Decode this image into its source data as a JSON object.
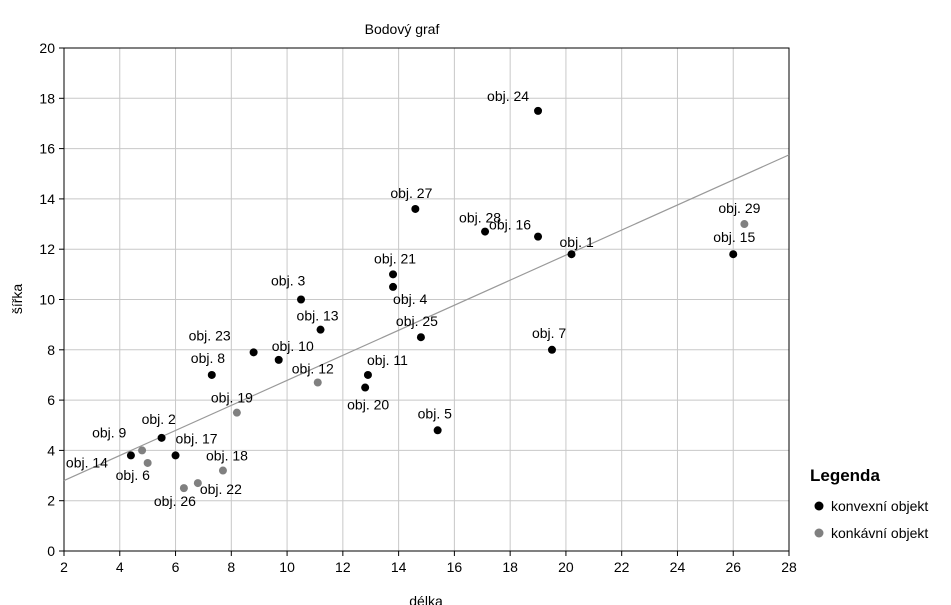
{
  "chart_data": {
    "type": "scatter",
    "title": "Bodový graf",
    "xlabel": "délka",
    "ylabel": "šířka",
    "xlim": [
      2,
      28
    ],
    "ylim": [
      0,
      20
    ],
    "xticks": [
      "2",
      "4",
      "6",
      "8",
      "10",
      "12",
      "14",
      "16",
      "18",
      "20",
      "22",
      "24",
      "26",
      "28"
    ],
    "yticks": [
      "0",
      "2",
      "4",
      "6",
      "8",
      "10",
      "12",
      "14",
      "16",
      "18",
      "20"
    ],
    "grid": true,
    "legend_position": "right",
    "legend": {
      "title": "Legenda",
      "entries": [
        {
          "name": "konvexní objekt",
          "color": "#000000"
        },
        {
          "name": "konkávní objekt",
          "color": "#808080"
        }
      ]
    },
    "trend_line": {
      "color": "#999999",
      "x": [
        2,
        28
      ],
      "y": [
        2.8,
        15.75
      ]
    },
    "series": [
      {
        "name": "konvexní objekt",
        "color": "#000000",
        "points": [
          {
            "x": 20.2,
            "y": 11.8,
            "label": "obj. 1"
          },
          {
            "x": 5.5,
            "y": 4.5,
            "label": "obj. 2"
          },
          {
            "x": 10.5,
            "y": 10.0,
            "label": "obj. 3"
          },
          {
            "x": 13.8,
            "y": 10.5,
            "label": "obj. 4"
          },
          {
            "x": 15.4,
            "y": 4.8,
            "label": "obj. 5"
          },
          {
            "x": 19.5,
            "y": 8.0,
            "label": "obj. 7"
          },
          {
            "x": 7.3,
            "y": 7.0,
            "label": "obj. 8"
          },
          {
            "x": 9.7,
            "y": 7.6,
            "label": "obj. 10"
          },
          {
            "x": 12.9,
            "y": 7.0,
            "label": "obj. 11"
          },
          {
            "x": 11.2,
            "y": 8.8,
            "label": "obj. 13"
          },
          {
            "x": 4.4,
            "y": 3.8,
            "label": "obj. 14"
          },
          {
            "x": 26.0,
            "y": 11.8,
            "label": "obj. 15"
          },
          {
            "x": 19.0,
            "y": 12.5,
            "label": "obj. 16"
          },
          {
            "x": 6.0,
            "y": 3.8,
            "label": "obj. 17"
          },
          {
            "x": 12.8,
            "y": 6.5,
            "label": "obj. 20"
          },
          {
            "x": 13.8,
            "y": 11.0,
            "label": "obj. 21"
          },
          {
            "x": 8.8,
            "y": 7.9,
            "label": "obj. 23"
          },
          {
            "x": 19.0,
            "y": 17.5,
            "label": "obj. 24"
          },
          {
            "x": 14.8,
            "y": 8.5,
            "label": "obj. 25"
          },
          {
            "x": 14.6,
            "y": 13.6,
            "label": "obj. 27"
          },
          {
            "x": 17.1,
            "y": 12.7,
            "label": "obj. 28"
          }
        ]
      },
      {
        "name": "konkávní objekt",
        "color": "#808080",
        "points": [
          {
            "x": 5.0,
            "y": 3.5,
            "label": "obj. 6"
          },
          {
            "x": 4.8,
            "y": 4.0,
            "label": "obj. 9"
          },
          {
            "x": 11.1,
            "y": 6.7,
            "label": "obj. 12"
          },
          {
            "x": 7.7,
            "y": 3.2,
            "label": "obj. 18"
          },
          {
            "x": 8.2,
            "y": 5.5,
            "label": "obj. 19"
          },
          {
            "x": 6.8,
            "y": 2.7,
            "label": "obj. 22"
          },
          {
            "x": 6.3,
            "y": 2.5,
            "label": "obj. 26"
          },
          {
            "x": 26.4,
            "y": 13.0,
            "label": "obj. 29"
          }
        ]
      }
    ]
  }
}
